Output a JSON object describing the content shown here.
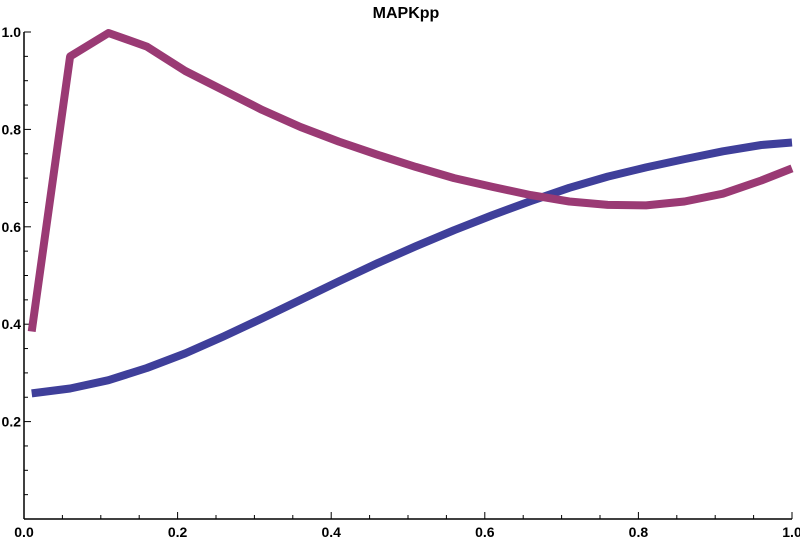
{
  "chart_data": {
    "type": "line",
    "title": "MAPKpp",
    "xlabel": "",
    "ylabel": "",
    "xlim": [
      0,
      1
    ],
    "ylim": [
      0,
      1
    ],
    "x_ticks": [
      {
        "value": 0.0,
        "label": "0.0"
      },
      {
        "value": 0.2,
        "label": "0.2"
      },
      {
        "value": 0.4,
        "label": "0.4"
      },
      {
        "value": 0.6,
        "label": "0.6"
      },
      {
        "value": 0.8,
        "label": "0.8"
      },
      {
        "value": 1.0,
        "label": "1.0"
      }
    ],
    "y_ticks": [
      {
        "value": 0.2,
        "label": "0.2"
      },
      {
        "value": 0.4,
        "label": "0.4"
      },
      {
        "value": 0.6,
        "label": "0.6"
      },
      {
        "value": 0.8,
        "label": "0.8"
      },
      {
        "value": 1.0,
        "label": "1.0"
      }
    ],
    "minor_tick_step": 0.05,
    "grid": false,
    "series": [
      {
        "color": "#3f3f9a",
        "x": [
          0.01,
          0.06,
          0.11,
          0.16,
          0.21,
          0.26,
          0.31,
          0.36,
          0.41,
          0.46,
          0.51,
          0.56,
          0.61,
          0.66,
          0.71,
          0.76,
          0.81,
          0.86,
          0.91,
          0.96,
          1.0
        ],
        "y": [
          0.258,
          0.268,
          0.285,
          0.31,
          0.34,
          0.375,
          0.412,
          0.45,
          0.488,
          0.525,
          0.56,
          0.593,
          0.624,
          0.653,
          0.68,
          0.703,
          0.722,
          0.739,
          0.755,
          0.768,
          0.773
        ]
      },
      {
        "color": "#9a3a74",
        "x": [
          0.01,
          0.06,
          0.11,
          0.16,
          0.21,
          0.26,
          0.31,
          0.36,
          0.41,
          0.46,
          0.51,
          0.56,
          0.61,
          0.66,
          0.71,
          0.76,
          0.81,
          0.86,
          0.91,
          0.96,
          1.0
        ],
        "y": [
          0.385,
          0.95,
          0.998,
          0.97,
          0.92,
          0.88,
          0.84,
          0.805,
          0.775,
          0.748,
          0.723,
          0.7,
          0.682,
          0.665,
          0.652,
          0.645,
          0.644,
          0.652,
          0.668,
          0.695,
          0.72
        ]
      }
    ]
  }
}
